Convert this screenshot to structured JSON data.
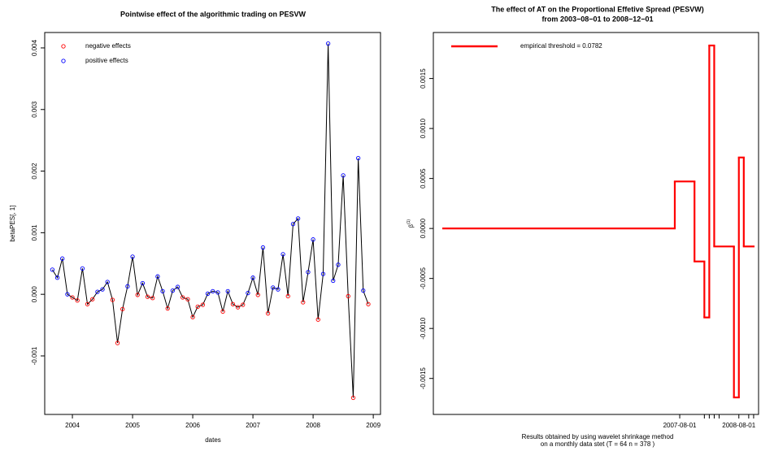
{
  "chart_data": [
    {
      "type": "line",
      "title": "Pointwise effect of the algorithmic trading on PESVW",
      "xlabel": "dates",
      "ylabel": "betaPES[, 1]",
      "legend": [
        {
          "name": "negative effects",
          "color": "#ff0000"
        },
        {
          "name": "positive effects",
          "color": "#0000ff"
        }
      ],
      "line_color": "#000000",
      "x": [
        2003.667,
        2003.75,
        2003.833,
        2003.917,
        2004.0,
        2004.083,
        2004.167,
        2004.25,
        2004.333,
        2004.417,
        2004.5,
        2004.583,
        2004.667,
        2004.75,
        2004.833,
        2004.917,
        2005.0,
        2005.083,
        2005.167,
        2005.25,
        2005.333,
        2005.417,
        2005.5,
        2005.583,
        2005.667,
        2005.75,
        2005.833,
        2005.917,
        2006.0,
        2006.083,
        2006.167,
        2006.25,
        2006.333,
        2006.417,
        2006.5,
        2006.583,
        2006.667,
        2006.75,
        2006.833,
        2006.917,
        2007.0,
        2007.083,
        2007.167,
        2007.25,
        2007.333,
        2007.417,
        2007.5,
        2007.583,
        2007.667,
        2007.75,
        2007.833,
        2007.917,
        2008.0,
        2008.083,
        2008.167,
        2008.25,
        2008.333,
        2008.417,
        2008.5,
        2008.583,
        2008.667,
        2008.75,
        2008.833,
        2008.917
      ],
      "values": [
        0.0004,
        0.00027,
        0.00058,
        0.0,
        -5e-05,
        -0.0001,
        0.00042,
        -0.00016,
        -8e-05,
        4e-05,
        8e-05,
        0.0002,
        -9e-05,
        -0.00079,
        -0.00024,
        0.00013,
        0.00061,
        -1e-05,
        0.00018,
        -4e-05,
        -6e-05,
        0.00029,
        5e-05,
        -0.00023,
        6e-05,
        0.00012,
        -5e-05,
        -8e-05,
        -0.00037,
        -0.0002,
        -0.00017,
        1e-05,
        5e-05,
        3e-05,
        -0.00028,
        5e-05,
        -0.00016,
        -0.00021,
        -0.00017,
        2e-05,
        0.00027,
        -1e-05,
        0.00076,
        -0.00031,
        0.00011,
        8e-05,
        0.00065,
        -3e-05,
        0.00114,
        0.00123,
        -0.00013,
        0.00036,
        0.00089,
        -0.00041,
        0.00033,
        0.00407,
        0.00022,
        0.00048,
        0.00193,
        -3e-05,
        -0.00168,
        0.00221,
        6e-05,
        -0.00016
      ],
      "xlim": [
        2003.54,
        2009.12
      ],
      "xticks": [
        2004,
        2005,
        2006,
        2007,
        2008,
        2009
      ],
      "ylim": [
        -0.00195,
        0.00425
      ],
      "yticks": [
        -0.001,
        {
          "value": 0,
          "label": "0.000"
        },
        0.001,
        0.002,
        0.003,
        0.004
      ]
    },
    {
      "type": "step",
      "title": "The effect of AT on the Proportional Effetive Spread (PESVW)",
      "subtitle": "from  2003−08−01  to  2008−12−01",
      "ylabel": "β",
      "ylabel_superscript": "(1)",
      "note": [
        "Results obtained by using wavelet shrinkage method",
        "on a monthly data stet (T =  64 n =  378 )"
      ],
      "series_name": "empirical threshold =  0.0782",
      "color": "#ff0000",
      "edges": [
        "2003-08-01",
        "2007-07-01",
        "2007-11-01",
        "2008-01-01",
        "2008-02-01",
        "2008-03-01",
        "2008-07-01",
        "2008-08-01",
        "2008-09-01",
        "2008-11-01"
      ],
      "values": [
        0,
        0.00047,
        -0.00033,
        -0.00089,
        0.00183,
        -0.00018,
        -0.00169,
        0.00071,
        -0.00018
      ],
      "xlim": [
        "2003-06-01",
        "2008-12-01"
      ],
      "xticks": [
        "2007-08-01",
        "2008-08-01"
      ],
      "xminorticks": [
        "2008-01-01",
        "2008-02-01",
        "2008-03-01",
        "2008-04-01",
        "2008-10-01",
        "2008-11-01"
      ],
      "ylim": [
        -0.00186,
        0.00196
      ],
      "yticks": [
        {
          "value": -0.0015,
          "label": "-0.0015"
        },
        {
          "value": -0.001,
          "label": "-0.0010"
        },
        {
          "value": -0.0005,
          "label": "-0.0005"
        },
        {
          "value": 0,
          "label": "0.0000"
        },
        {
          "value": 0.0005,
          "label": "0.0005"
        },
        {
          "value": 0.001,
          "label": "0.0010"
        },
        {
          "value": 0.0015,
          "label": "0.0015"
        }
      ]
    }
  ]
}
